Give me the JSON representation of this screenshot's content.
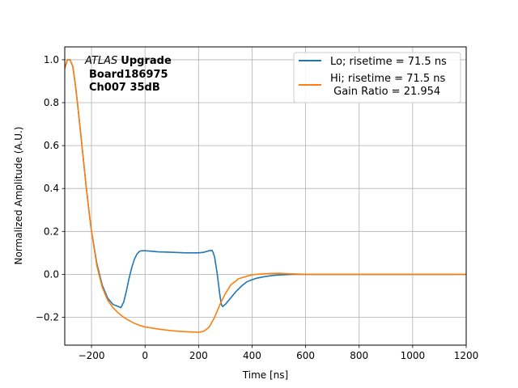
{
  "chart_data": {
    "type": "line",
    "title": "",
    "xlabel": "Time [ns]",
    "ylabel": "Normalized Amplitude (A.U.)",
    "xlim": [
      -300,
      1200
    ],
    "ylim": [
      -0.33,
      1.06
    ],
    "grid": true,
    "legend_position": "top-right",
    "xticks": [
      -200,
      0,
      200,
      400,
      600,
      800,
      1000,
      1200
    ],
    "xtick_labels": [
      "−200",
      "0",
      "200",
      "400",
      "600",
      "800",
      "1000",
      "1200"
    ],
    "yticks": [
      -0.2,
      0.0,
      0.2,
      0.4,
      0.6,
      0.8,
      1.0
    ],
    "ytick_labels": [
      "−0.2",
      "0.0",
      "0.2",
      "0.4",
      "0.6",
      "0.8",
      "1.0"
    ],
    "annotation": {
      "experiment": "ATLAS",
      "tag": "Upgrade",
      "board": "Board186975",
      "channel": "Ch007 35dB"
    },
    "series": [
      {
        "name": "Lo; risetime = 71.5 ns",
        "color": "#1f77b4",
        "x": [
          -300,
          -290,
          -280,
          -270,
          -260,
          -250,
          -240,
          -230,
          -220,
          -210,
          -200,
          -180,
          -160,
          -140,
          -120,
          -100,
          -90,
          -80,
          -70,
          -60,
          -50,
          -40,
          -30,
          -20,
          -10,
          0,
          20,
          50,
          100,
          150,
          200,
          220,
          240,
          250,
          255,
          260,
          265,
          270,
          275,
          280,
          285,
          290,
          300,
          320,
          340,
          360,
          380,
          400,
          420,
          450,
          480,
          500,
          550,
          600,
          700,
          800,
          900,
          1000,
          1100,
          1200
        ],
        "y": [
          0.96,
          1.0,
          1.0,
          0.97,
          0.88,
          0.77,
          0.65,
          0.53,
          0.41,
          0.3,
          0.2,
          0.05,
          -0.05,
          -0.11,
          -0.14,
          -0.15,
          -0.155,
          -0.13,
          -0.08,
          -0.02,
          0.03,
          0.07,
          0.095,
          0.108,
          0.11,
          0.11,
          0.108,
          0.105,
          0.103,
          0.1,
          0.1,
          0.103,
          0.11,
          0.112,
          0.1,
          0.08,
          0.04,
          0.0,
          -0.05,
          -0.1,
          -0.14,
          -0.15,
          -0.14,
          -0.11,
          -0.08,
          -0.055,
          -0.035,
          -0.025,
          -0.017,
          -0.01,
          -0.005,
          -0.003,
          0.0,
          0.0,
          0.0,
          0.0,
          0.0,
          0.0,
          0.0,
          0.0
        ]
      },
      {
        "name": "Hi; risetime = 71.5 ns\n Gain Ratio = 21.954",
        "color": "#ff7f0e",
        "x": [
          -300,
          -290,
          -280,
          -270,
          -260,
          -250,
          -240,
          -230,
          -220,
          -210,
          -200,
          -180,
          -160,
          -140,
          -120,
          -100,
          -80,
          -60,
          -40,
          -20,
          0,
          50,
          100,
          150,
          200,
          220,
          240,
          260,
          280,
          300,
          320,
          350,
          400,
          450,
          500,
          550,
          600,
          700,
          800,
          900,
          1000,
          1100,
          1200
        ],
        "y": [
          0.96,
          1.0,
          1.0,
          0.97,
          0.88,
          0.77,
          0.65,
          0.53,
          0.41,
          0.3,
          0.2,
          0.04,
          -0.06,
          -0.12,
          -0.155,
          -0.18,
          -0.2,
          -0.215,
          -0.228,
          -0.238,
          -0.245,
          -0.255,
          -0.263,
          -0.267,
          -0.27,
          -0.265,
          -0.245,
          -0.2,
          -0.14,
          -0.09,
          -0.05,
          -0.02,
          -0.002,
          0.003,
          0.005,
          0.002,
          0.0,
          0.0,
          0.0,
          0.0,
          0.0,
          0.0,
          0.0
        ]
      }
    ]
  }
}
